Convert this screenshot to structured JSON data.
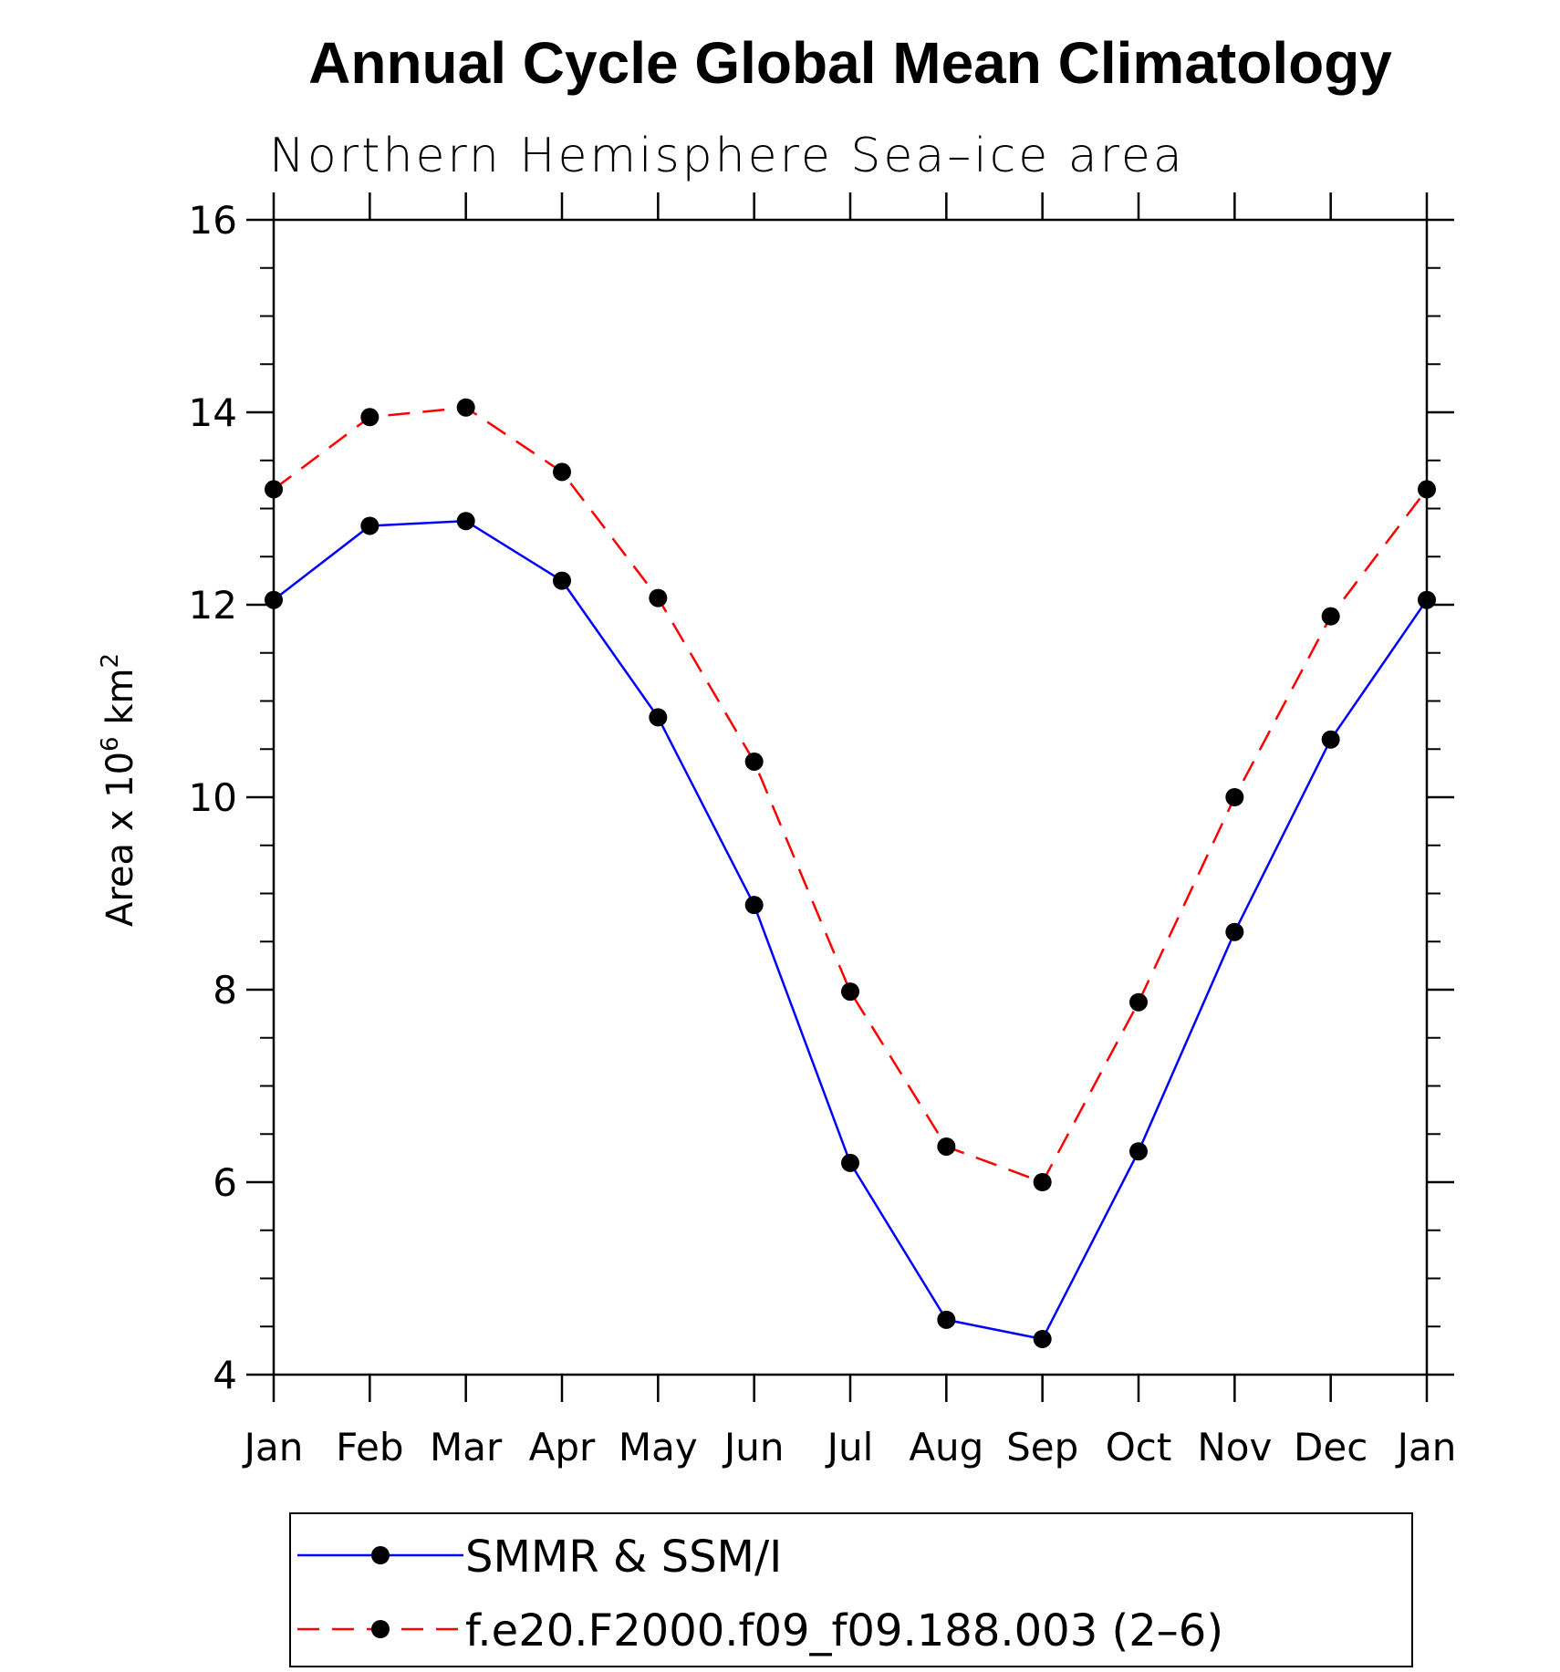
{
  "chart_data": {
    "type": "line",
    "title": "Annual Cycle Global Mean Climatology",
    "subtitle": "Northern Hemisphere Sea–ice area",
    "xlabel": "",
    "ylabel": "Area x 10⁶ km²",
    "ylabel_parts": {
      "base": "Area x 10",
      "exp1": "6",
      "mid": " km",
      "exp2": "2"
    },
    "categories": [
      "Jan",
      "Feb",
      "Mar",
      "Apr",
      "May",
      "Jun",
      "Jul",
      "Aug",
      "Sep",
      "Oct",
      "Nov",
      "Dec",
      "Jan"
    ],
    "ylim": [
      4,
      16
    ],
    "yticks": [
      4,
      6,
      8,
      10,
      12,
      14,
      16
    ],
    "y_minor_step": 0.5,
    "grid": false,
    "legend_position": "bottom",
    "series": [
      {
        "name": "SMMR & SSM/I",
        "color": "#0000ff",
        "line_style": "solid",
        "marker": "filled-circle",
        "marker_color": "#000000",
        "values": [
          12.05,
          12.82,
          12.87,
          12.25,
          10.83,
          8.88,
          6.2,
          4.57,
          4.37,
          6.32,
          8.6,
          10.6,
          12.05
        ]
      },
      {
        "name": "f.e20.F2000.f09_f09.188.003 (2–6)",
        "color": "#ff0000",
        "line_style": "dashed",
        "marker": "filled-circle",
        "marker_color": "#000000",
        "values": [
          13.2,
          13.95,
          14.05,
          13.38,
          12.07,
          10.37,
          7.98,
          6.37,
          6.0,
          7.87,
          10.0,
          11.88,
          13.2
        ]
      }
    ]
  }
}
